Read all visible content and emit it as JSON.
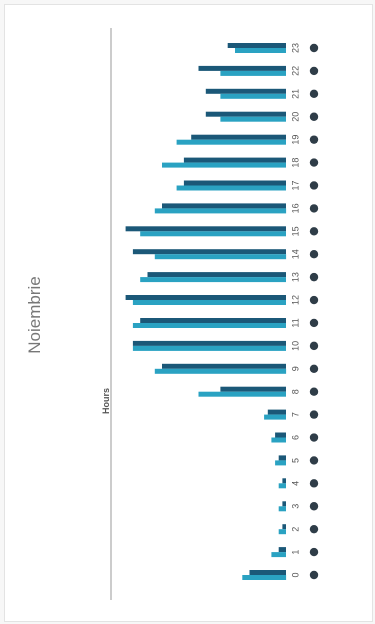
{
  "page": {
    "title": "Noiembrie"
  },
  "chart_data": {
    "type": "bar",
    "title": "Noiembrie",
    "ylabel": "Hours",
    "categories": [
      "0",
      "1",
      "2",
      "3",
      "4",
      "5",
      "6",
      "7",
      "8",
      "9",
      "10",
      "11",
      "12",
      "13",
      "14",
      "15",
      "16",
      "17",
      "18",
      "19",
      "20",
      "21",
      "22",
      "23"
    ],
    "series": [
      {
        "values": [
          5,
          1,
          0.5,
          0.5,
          0.5,
          1,
          1.5,
          2.5,
          9,
          17,
          21,
          20,
          22,
          19,
          21,
          22,
          17,
          14,
          14,
          13,
          11,
          11,
          12,
          8
        ]
      },
      {
        "values": [
          6,
          2,
          1,
          1,
          1,
          1.5,
          2,
          3,
          12,
          18,
          21,
          21,
          21,
          20,
          18,
          20,
          18,
          15,
          17,
          15,
          9,
          9,
          9,
          7
        ]
      }
    ],
    "colors": [
      "#1b5878",
      "#2aa2c2"
    ],
    "orientation": "rotated-vertical",
    "xlim": [
      0,
      24
    ],
    "grid": false
  }
}
